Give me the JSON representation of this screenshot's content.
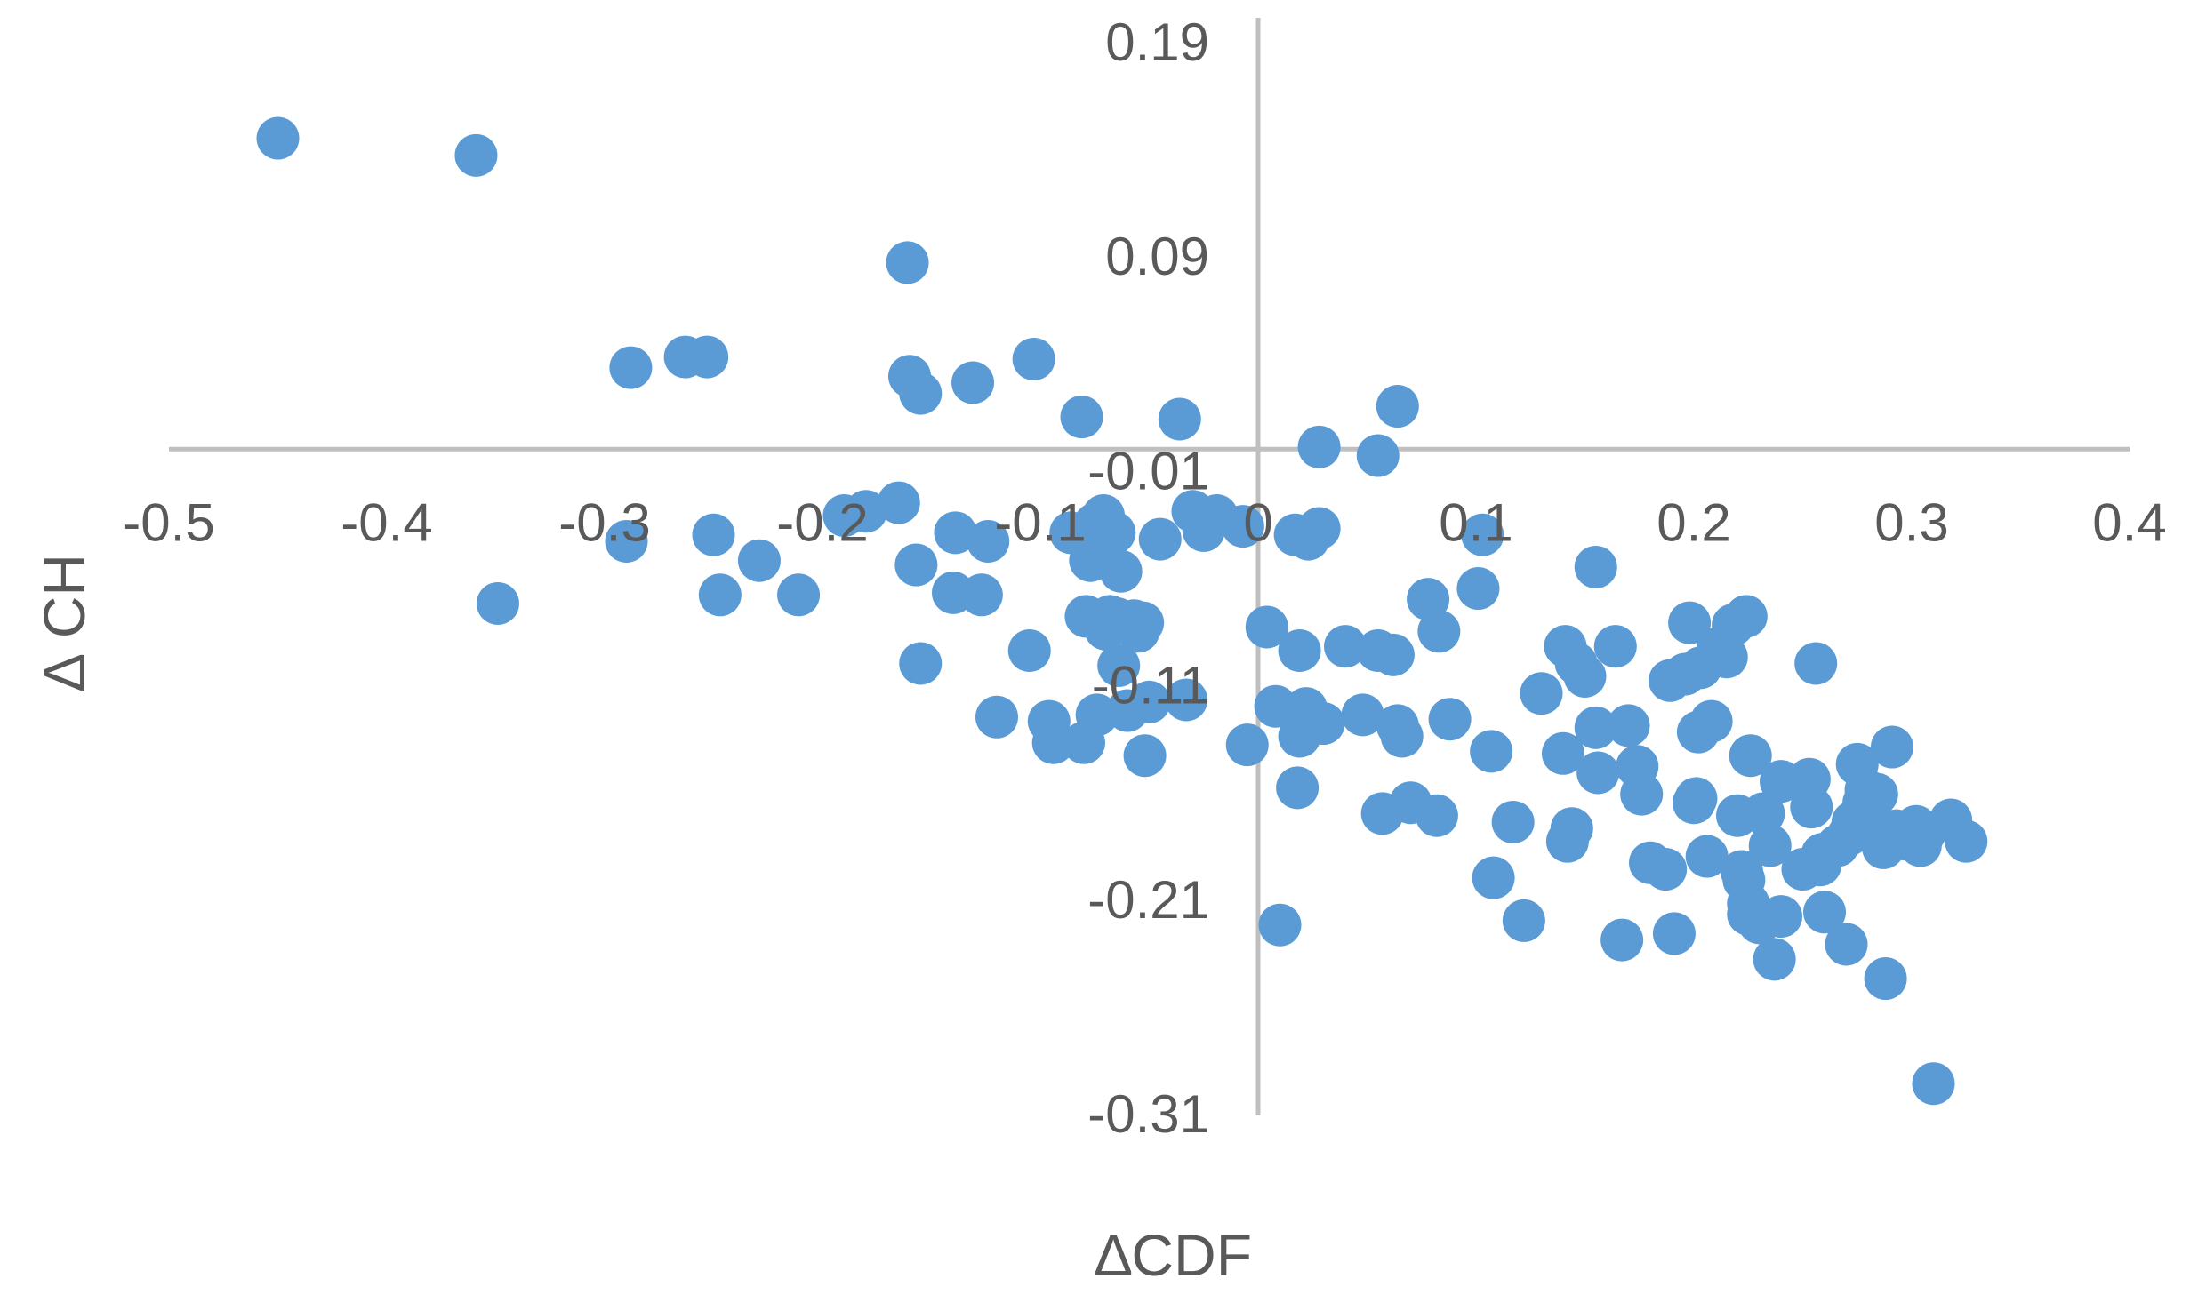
{
  "chart_data": {
    "type": "scatter",
    "title": "",
    "xlabel": "∆CDF",
    "ylabel": "∆ CH",
    "xlim": [
      -0.5,
      0.4
    ],
    "ylim": [
      -0.31,
      0.19
    ],
    "x_ticks": [
      -0.5,
      -0.4,
      -0.3,
      -0.2,
      -0.1,
      0,
      0.1,
      0.2,
      0.3,
      0.4
    ],
    "x_tick_labels": [
      "-0.5",
      "-0.4",
      "-0.3",
      "-0.2",
      "-0.1",
      "0",
      "0.1",
      "0.2",
      "0.3",
      "0.4"
    ],
    "y_ticks": [
      0.19,
      0.09,
      -0.01,
      -0.11,
      -0.21,
      -0.31
    ],
    "y_tick_labels": [
      "0.19",
      "0.09",
      "-0.01",
      "-0.11",
      "-0.21",
      "-0.31"
    ],
    "grid": false,
    "legend": "none",
    "marker_color": "#5B9BD5",
    "axis_color": "#BFBFBF",
    "series": [
      {
        "points": [
          [
            -0.45,
            0.145
          ],
          [
            -0.359,
            0.137
          ],
          [
            -0.349,
            -0.072
          ],
          [
            -0.288,
            0.038
          ],
          [
            -0.29,
            -0.043
          ],
          [
            -0.263,
            0.043
          ],
          [
            -0.253,
            0.043
          ],
          [
            -0.25,
            -0.04
          ],
          [
            -0.247,
            -0.068
          ],
          [
            -0.229,
            -0.052
          ],
          [
            -0.211,
            -0.068
          ],
          [
            -0.19,
            -0.031
          ],
          [
            -0.18,
            -0.029
          ],
          [
            -0.165,
            -0.025
          ],
          [
            -0.161,
            0.087
          ],
          [
            -0.16,
            0.034
          ],
          [
            -0.155,
            0.026
          ],
          [
            -0.157,
            -0.054
          ],
          [
            -0.155,
            -0.1
          ],
          [
            -0.14,
            -0.067
          ],
          [
            -0.139,
            -0.039
          ],
          [
            -0.131,
            0.031
          ],
          [
            -0.127,
            -0.068
          ],
          [
            -0.124,
            -0.043
          ],
          [
            -0.12,
            -0.125
          ],
          [
            -0.105,
            -0.094
          ],
          [
            -0.103,
            0.042
          ],
          [
            -0.096,
            -0.127
          ],
          [
            -0.094,
            -0.137
          ],
          [
            -0.086,
            -0.039
          ],
          [
            -0.081,
            0.015
          ],
          [
            -0.08,
            -0.137
          ],
          [
            -0.079,
            -0.078
          ],
          [
            -0.077,
            -0.052
          ],
          [
            -0.075,
            -0.035
          ],
          [
            -0.074,
            -0.124
          ],
          [
            -0.071,
            -0.031
          ],
          [
            -0.07,
            -0.084
          ],
          [
            -0.068,
            -0.078
          ],
          [
            -0.066,
            -0.039
          ],
          [
            -0.065,
            -0.079
          ],
          [
            -0.064,
            -0.101
          ],
          [
            -0.063,
            -0.057
          ],
          [
            -0.06,
            -0.122
          ],
          [
            -0.057,
            -0.08
          ],
          [
            -0.055,
            -0.085
          ],
          [
            -0.053,
            -0.081
          ],
          [
            -0.052,
            -0.143
          ],
          [
            -0.05,
            -0.118
          ],
          [
            -0.045,
            -0.042
          ],
          [
            -0.036,
            0.014
          ],
          [
            -0.033,
            -0.117
          ],
          [
            -0.03,
            -0.029
          ],
          [
            -0.025,
            -0.038
          ],
          [
            -0.019,
            -0.031
          ],
          [
            -0.007,
            -0.036
          ],
          [
            -0.005,
            -0.138
          ],
          [
            0.004,
            -0.083
          ],
          [
            0.008,
            -0.12
          ],
          [
            0.017,
            -0.04
          ],
          [
            0.019,
            -0.094
          ],
          [
            0.018,
            -0.158
          ],
          [
            0.022,
            -0.121
          ],
          [
            0.023,
            -0.042
          ],
          [
            0.019,
            -0.134
          ],
          [
            0.01,
            -0.222
          ],
          [
            0.03,
            -0.128
          ],
          [
            0.028,
            -0.037
          ],
          [
            0.028,
            0.001
          ],
          [
            0.04,
            -0.092
          ],
          [
            0.048,
            -0.124
          ],
          [
            0.055,
            -0.003
          ],
          [
            0.055,
            -0.094
          ],
          [
            0.057,
            -0.17
          ],
          [
            0.062,
            -0.096
          ],
          [
            0.064,
            0.02
          ],
          [
            0.064,
            -0.129
          ],
          [
            0.066,
            -0.134
          ],
          [
            0.07,
            -0.165
          ],
          [
            0.078,
            -0.07
          ],
          [
            0.082,
            -0.171
          ],
          [
            0.083,
            -0.085
          ],
          [
            0.088,
            -0.126
          ],
          [
            0.101,
            -0.065
          ],
          [
            0.103,
            -0.04
          ],
          [
            0.107,
            -0.141
          ],
          [
            0.108,
            -0.2
          ],
          [
            0.117,
            -0.174
          ],
          [
            0.122,
            -0.22
          ],
          [
            0.13,
            -0.114
          ],
          [
            0.141,
            -0.092
          ],
          [
            0.14,
            -0.142
          ],
          [
            0.142,
            -0.183
          ],
          [
            0.144,
            -0.177
          ],
          [
            0.146,
            -0.1
          ],
          [
            0.15,
            -0.106
          ],
          [
            0.155,
            -0.13
          ],
          [
            0.155,
            -0.055
          ],
          [
            0.156,
            -0.151
          ],
          [
            0.164,
            -0.092
          ],
          [
            0.167,
            -0.229
          ],
          [
            0.17,
            -0.129
          ],
          [
            0.174,
            -0.148
          ],
          [
            0.176,
            -0.161
          ],
          [
            0.18,
            -0.193
          ],
          [
            0.187,
            -0.196
          ],
          [
            0.189,
            -0.108
          ],
          [
            0.191,
            -0.226
          ],
          [
            0.196,
            -0.105
          ],
          [
            0.198,
            -0.081
          ],
          [
            0.201,
            -0.163
          ],
          [
            0.203,
            -0.102
          ],
          [
            0.2,
            -0.165
          ],
          [
            0.202,
            -0.132
          ],
          [
            0.206,
            -0.19
          ],
          [
            0.208,
            -0.127
          ],
          [
            0.211,
            -0.093
          ],
          [
            0.215,
            -0.097
          ],
          [
            0.218,
            -0.082
          ],
          [
            0.22,
            -0.171
          ],
          [
            0.222,
            -0.197
          ],
          [
            0.223,
            -0.201
          ],
          [
            0.224,
            -0.078
          ],
          [
            0.225,
            -0.212
          ],
          [
            0.226,
            -0.143
          ],
          [
            0.225,
            -0.217
          ],
          [
            0.23,
            -0.221
          ],
          [
            0.232,
            -0.17
          ],
          [
            0.235,
            -0.185
          ],
          [
            0.237,
            -0.238
          ],
          [
            0.24,
            -0.218
          ],
          [
            0.24,
            -0.155
          ],
          [
            0.25,
            -0.196
          ],
          [
            0.253,
            -0.154
          ],
          [
            0.254,
            -0.167
          ],
          [
            0.256,
            -0.1
          ],
          [
            0.258,
            -0.194
          ],
          [
            0.259,
            -0.189
          ],
          [
            0.26,
            -0.216
          ],
          [
            0.266,
            -0.185
          ],
          [
            0.27,
            -0.231
          ],
          [
            0.271,
            -0.18
          ],
          [
            0.273,
            -0.174
          ],
          [
            0.275,
            -0.147
          ],
          [
            0.278,
            -0.165
          ],
          [
            0.279,
            -0.159
          ],
          [
            0.281,
            -0.172
          ],
          [
            0.282,
            -0.175
          ],
          [
            0.284,
            -0.161
          ],
          [
            0.287,
            -0.186
          ],
          [
            0.288,
            -0.247
          ],
          [
            0.291,
            -0.139
          ],
          [
            0.293,
            -0.178
          ],
          [
            0.297,
            -0.182
          ],
          [
            0.302,
            -0.176
          ],
          [
            0.304,
            -0.185
          ],
          [
            0.306,
            -0.179
          ],
          [
            0.31,
            -0.296
          ],
          [
            0.318,
            -0.173
          ],
          [
            0.325,
            -0.183
          ]
        ]
      }
    ]
  }
}
